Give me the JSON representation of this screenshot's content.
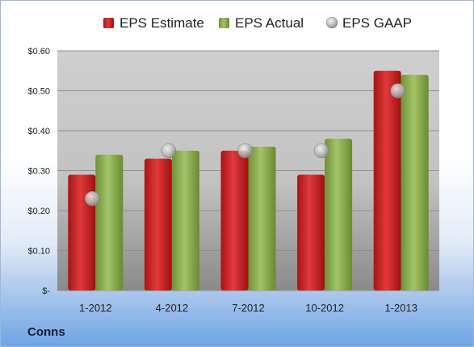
{
  "chart_data": {
    "type": "bar",
    "categories": [
      "1-2012",
      "4-2012",
      "7-2012",
      "10-2012",
      "1-2013"
    ],
    "series": [
      {
        "name": "EPS Estimate",
        "type": "bar",
        "color": "#cc2222",
        "values": [
          0.29,
          0.33,
          0.35,
          0.29,
          0.55
        ]
      },
      {
        "name": "EPS Actual",
        "type": "bar",
        "color": "#8aae4a",
        "values": [
          0.34,
          0.35,
          0.36,
          0.38,
          0.54
        ]
      },
      {
        "name": "EPS GAAP",
        "type": "marker",
        "color": "#b8b8b8",
        "values": [
          0.23,
          0.35,
          0.35,
          0.35,
          0.5
        ]
      }
    ],
    "ylim": [
      0,
      0.6
    ],
    "yticks": [
      0,
      0.1,
      0.2,
      0.3,
      0.4,
      0.5,
      0.6
    ],
    "ytick_labels": [
      "$-",
      "$0.10",
      "$0.20",
      "$0.30",
      "$0.40",
      "$0.50",
      "$0.60"
    ],
    "grid": true,
    "legend_position": "top"
  },
  "footer": {
    "company": "Conns"
  }
}
